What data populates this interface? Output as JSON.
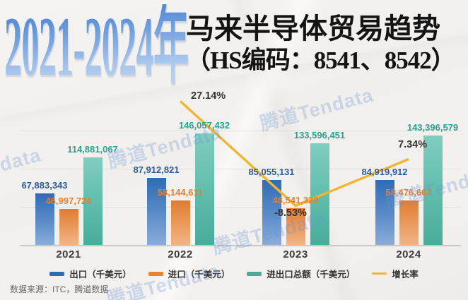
{
  "header": {
    "period_title": "2021-2024年",
    "main_title": "马来半导体贸易趋势",
    "subtitle": "（HS编码：8541、8542）"
  },
  "chart_data": {
    "type": "bar",
    "title": "2021-2024年马来半导体贸易趋势（HS编码：8541、8542）",
    "categories": [
      "2021",
      "2022",
      "2023",
      "2024"
    ],
    "series": [
      {
        "name": "出口（千美元）",
        "type": "bar",
        "color": "#2e6cb3",
        "label_color": "#2a5d9f",
        "values": [
          67883343,
          87912821,
          85055131,
          84919912
        ]
      },
      {
        "name": "进口（千美元）",
        "type": "bar",
        "color": "#e8832e",
        "label_color": "#e2802f",
        "values": [
          46997724,
          58144611,
          48541320,
          58476667
        ]
      },
      {
        "name": "进出口总额（千美元）",
        "type": "bar",
        "color": "#4aaa9a",
        "label_color": "#2ba18f",
        "values": [
          114881067,
          146057432,
          133596451,
          143396579
        ]
      }
    ],
    "line_series": {
      "name": "增长率",
      "type": "line",
      "color": "#f2b532",
      "values": [
        null,
        27.14,
        -8.53,
        7.34
      ],
      "labels": [
        "",
        "27.14%",
        "-8.53%",
        "7.34%"
      ]
    },
    "ylim": [
      0,
      150000000
    ],
    "grid_values": [
      50000000,
      100000000,
      150000000
    ],
    "grid": true,
    "legend_position": "bottom"
  },
  "source": {
    "text": "数据来源：ITC，腾道数据"
  },
  "watermark": {
    "text": "腾道Tendata"
  }
}
